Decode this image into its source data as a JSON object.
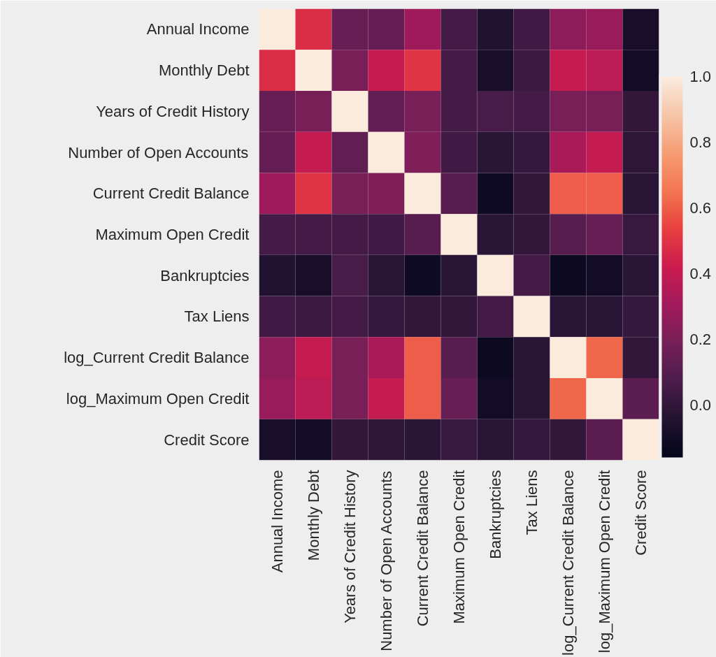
{
  "chart_data": {
    "type": "heatmap",
    "categories": [
      "Annual Income",
      "Monthly Debt",
      "Years of Credit History",
      "Number of Open Accounts",
      "Current Credit Balance",
      "Maximum Open Credit",
      "Bankruptcies",
      "Tax Liens",
      "log_Current Credit Balance",
      "log_Maximum Open Credit",
      "Credit Score"
    ],
    "y_categories": [
      "Annual Income",
      "Monthly Debt",
      "Years of Credit History",
      "Number of Open Accounts",
      "Current Credit Balance",
      "Maximum Open Credit",
      "Bankruptcies",
      "Tax Liens",
      "log_Current Credit Balance",
      "log_Maximum Open Credit",
      "Credit Score"
    ],
    "cells": [
      [
        1.0,
        0.48,
        0.15,
        0.14,
        0.3,
        0.05,
        -0.05,
        0.04,
        0.25,
        0.28,
        -0.08
      ],
      [
        0.48,
        1.0,
        0.2,
        0.4,
        0.5,
        0.05,
        -0.08,
        0.03,
        0.4,
        0.38,
        -0.1
      ],
      [
        0.15,
        0.2,
        1.0,
        0.13,
        0.2,
        0.05,
        0.06,
        0.05,
        0.2,
        0.2,
        0.0
      ],
      [
        0.14,
        0.4,
        0.13,
        1.0,
        0.22,
        0.04,
        -0.02,
        0.01,
        0.33,
        0.4,
        -0.01
      ],
      [
        0.3,
        0.5,
        0.2,
        0.22,
        1.0,
        0.1,
        -0.11,
        0.0,
        0.6,
        0.6,
        -0.02
      ],
      [
        0.05,
        0.05,
        0.05,
        0.04,
        0.1,
        1.0,
        -0.02,
        0.0,
        0.1,
        0.15,
        0.02
      ],
      [
        -0.05,
        -0.08,
        0.06,
        -0.02,
        -0.11,
        -0.02,
        1.0,
        0.05,
        -0.12,
        -0.1,
        -0.02
      ],
      [
        0.04,
        0.03,
        0.05,
        0.01,
        0.0,
        0.0,
        0.05,
        1.0,
        -0.02,
        -0.02,
        0.01
      ],
      [
        0.25,
        0.4,
        0.2,
        0.33,
        0.6,
        0.1,
        -0.12,
        -0.02,
        1.0,
        0.62,
        0.0
      ],
      [
        0.28,
        0.38,
        0.2,
        0.4,
        0.6,
        0.15,
        -0.1,
        -0.02,
        0.62,
        1.0,
        0.12
      ],
      [
        -0.08,
        -0.1,
        0.0,
        -0.01,
        -0.02,
        0.02,
        -0.02,
        0.01,
        0.0,
        0.12,
        1.0
      ]
    ],
    "clim": [
      -0.16,
      1.0
    ],
    "cticks": [
      {
        "value": 0.0,
        "label": "0.0"
      },
      {
        "value": 0.2,
        "label": "0.2"
      },
      {
        "value": 0.4,
        "label": "0.4"
      },
      {
        "value": 0.6,
        "label": "0.6"
      },
      {
        "value": 0.8,
        "label": "0.8"
      },
      {
        "value": 1.0,
        "label": "1.0"
      }
    ]
  }
}
